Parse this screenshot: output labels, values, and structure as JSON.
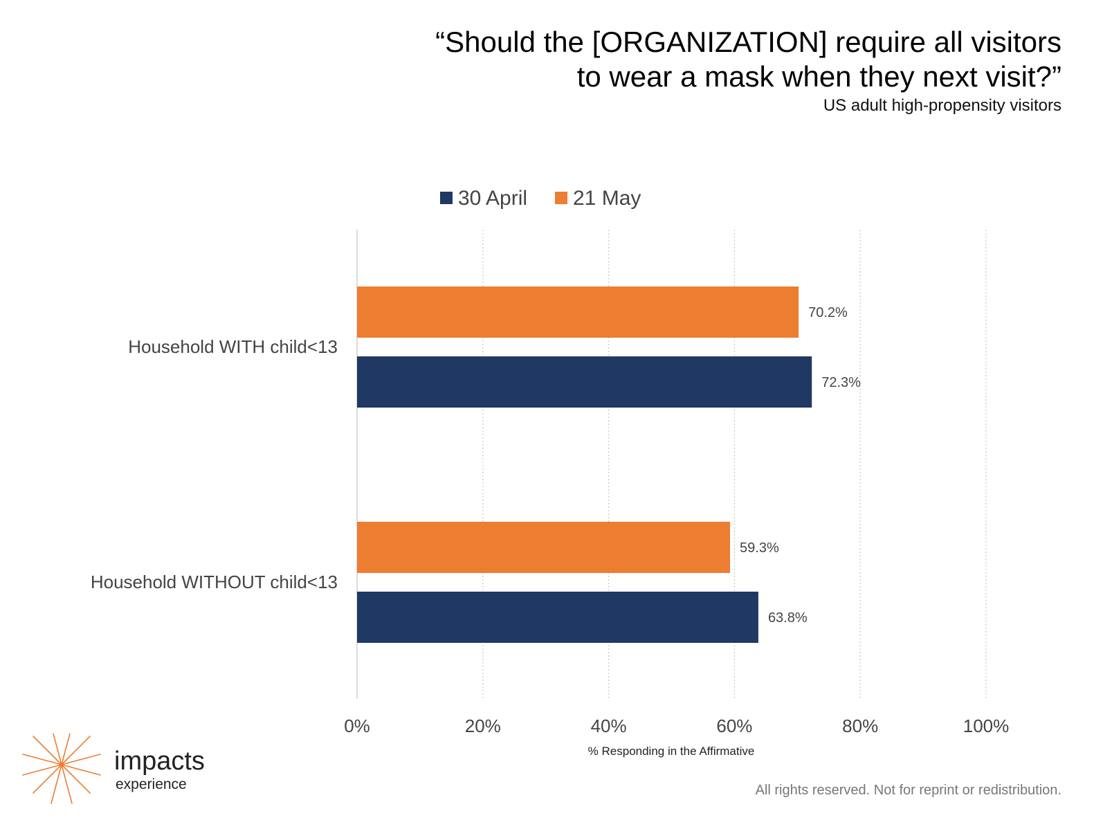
{
  "chart_data": {
    "type": "bar",
    "orientation": "horizontal",
    "title": "“Should the [ORGANIZATION] require all visitors to wear a mask when they next visit?”",
    "title_lines": [
      "“Should the [ORGANIZATION] require all visitors",
      "to wear a mask when they next visit?”"
    ],
    "subtitle": "US adult high-propensity visitors",
    "xlabel": "% Responding in the Affirmative",
    "ylabel": "",
    "xlim": [
      0,
      100
    ],
    "x_ticks": [
      0,
      20,
      40,
      60,
      80,
      100
    ],
    "x_tick_labels": [
      "0%",
      "20%",
      "40%",
      "60%",
      "80%",
      "100%"
    ],
    "grid": "vertical dotted",
    "legend_position": "top",
    "categories": [
      "Household WITH child<13",
      "Household WITHOUT child<13"
    ],
    "series": [
      {
        "name": "30 April",
        "color": "#203864",
        "values": [
          72.3,
          63.8
        ],
        "labels": [
          "72.3%",
          "63.8%"
        ]
      },
      {
        "name": "21 May",
        "color": "#ED7D31",
        "values": [
          70.2,
          59.3
        ],
        "labels": [
          "70.2%",
          "59.3%"
        ]
      }
    ]
  },
  "branding": {
    "logo_name": "impacts",
    "logo_sub": "experience",
    "logo_icon": "starburst-icon",
    "logo_color": "#ED7D31"
  },
  "footer": {
    "text": "All rights reserved. Not for reprint or redistribution."
  }
}
